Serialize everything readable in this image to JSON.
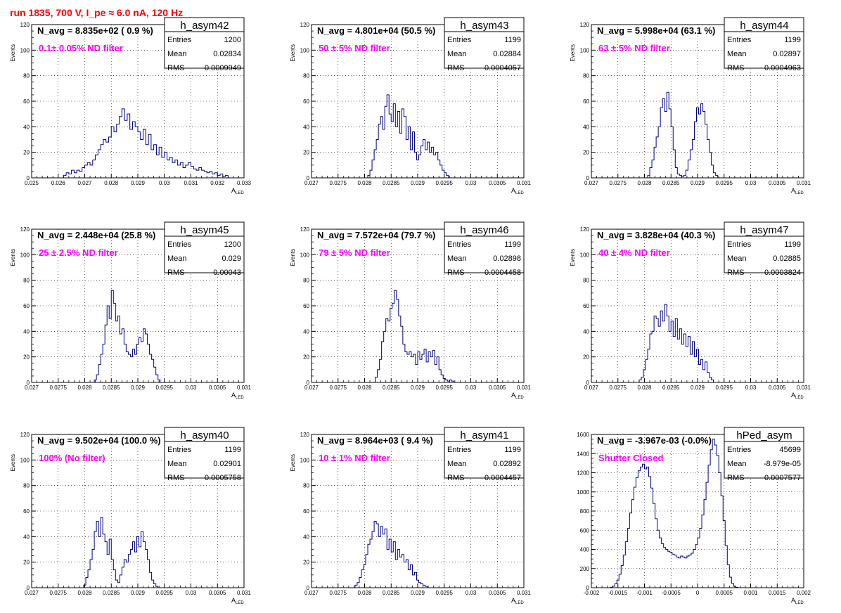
{
  "canvas_title": "run 1835,   700 V, I_pe ≈ 6.0 nA, 120 Hz",
  "colors": {
    "histogram": "#000080",
    "annotation": "#ff00ff",
    "title": "#ff0000",
    "grid": "#000000"
  },
  "chart_data": [
    {
      "type": "histogram",
      "name": "h_asym42",
      "navg_text": "N_avg = 8.835e+02 ( 0.9 %)",
      "filter_label": "0.1± 0.05% ND filter",
      "stats": {
        "entries_label": "Entries",
        "entries": "1200",
        "mean_label": "Mean",
        "mean": "0.02834",
        "rms_label": "RMS",
        "rms": "0.0009949"
      },
      "xlabel": "A",
      "xlabel_sub": "LED",
      "ylabel": "Events",
      "xlim": [
        0.025,
        0.033
      ],
      "ylim": [
        0,
        120
      ],
      "grid": true,
      "xticks": [
        0.025,
        0.026,
        0.027,
        0.028,
        0.029,
        0.03,
        0.031,
        0.032,
        0.033
      ],
      "xtick_labels": [
        "0.025",
        "0.026",
        "0.027",
        "0.028",
        "0.029",
        "0.03",
        "0.031",
        "0.032",
        "0.033"
      ],
      "yticks": [
        0,
        20,
        40,
        60,
        80,
        100,
        120
      ],
      "ytick_labels": [
        "0",
        "20",
        "40",
        "60",
        "80",
        "100",
        "120"
      ],
      "bin_start": 0.0262,
      "bin_width": 0.0001,
      "counts": [
        2,
        4,
        3,
        6,
        4,
        6,
        5,
        8,
        10,
        12,
        10,
        14,
        18,
        22,
        26,
        30,
        28,
        32,
        40,
        36,
        42,
        48,
        54,
        45,
        50,
        38,
        44,
        40,
        36,
        30,
        38,
        26,
        34,
        22,
        26,
        18,
        24,
        16,
        20,
        14,
        16,
        12,
        14,
        10,
        12,
        8,
        10,
        12,
        9,
        7,
        6,
        8,
        6,
        5,
        4,
        5,
        3,
        4,
        2,
        3,
        1,
        2
      ]
    },
    {
      "type": "histogram",
      "name": "h_asym43",
      "navg_text": "N_avg = 4.801e+04 (50.5 %)",
      "filter_label": "50 ± 5% ND filter",
      "stats": {
        "entries_label": "Entries",
        "entries": "1199",
        "mean_label": "Mean",
        "mean": "0.02884",
        "rms_label": "RMS",
        "rms": "0.0004057"
      },
      "xlabel": "A",
      "xlabel_sub": "LED",
      "ylabel": "Events",
      "xlim": [
        0.027,
        0.031
      ],
      "ylim": [
        0,
        120
      ],
      "grid": true,
      "xticks": [
        0.027,
        0.0275,
        0.028,
        0.0285,
        0.029,
        0.0295,
        0.03,
        0.0305,
        0.031
      ],
      "xtick_labels": [
        "0.027",
        "0.0275",
        "0.028",
        "0.0285",
        "0.029",
        "0.0295",
        "0.03",
        "0.0305",
        "0.031"
      ],
      "yticks": [
        0,
        20,
        40,
        60,
        80,
        100,
        120
      ],
      "ytick_labels": [
        "0",
        "20",
        "40",
        "60",
        "80",
        "100",
        "120"
      ],
      "bin_start": 0.02806,
      "bin_width": 4e-05,
      "counts": [
        2,
        6,
        14,
        22,
        30,
        42,
        48,
        38,
        56,
        65,
        50,
        44,
        58,
        40,
        52,
        35,
        54,
        48,
        30,
        40,
        22,
        36,
        20,
        14,
        18,
        25,
        30,
        22,
        28,
        20,
        24,
        18,
        20,
        14,
        10,
        6,
        4,
        2
      ]
    },
    {
      "type": "histogram",
      "name": "h_asym44",
      "navg_text": "N_avg = 5.998e+04 (63.1 %)",
      "filter_label": "63 ± 5% ND filter",
      "stats": {
        "entries_label": "Entries",
        "entries": "1199",
        "mean_label": "Mean",
        "mean": "0.02897",
        "rms_label": "RMS",
        "rms": "0.0004963"
      },
      "xlabel": "A",
      "xlabel_sub": "LED",
      "ylabel": "Events",
      "xlim": [
        0.027,
        0.031
      ],
      "ylim": [
        0,
        120
      ],
      "grid": true,
      "xticks": [
        0.027,
        0.0275,
        0.028,
        0.0285,
        0.029,
        0.0295,
        0.03,
        0.0305,
        0.031
      ],
      "xtick_labels": [
        "0.027",
        "0.0275",
        "0.028",
        "0.0285",
        "0.029",
        "0.0295",
        "0.03",
        "0.0305",
        "0.031"
      ],
      "yticks": [
        0,
        20,
        40,
        60,
        80,
        100,
        120
      ],
      "ytick_labels": [
        "0",
        "20",
        "40",
        "60",
        "80",
        "100",
        "120"
      ],
      "bin_start": 0.02806,
      "bin_width": 4e-05,
      "counts": [
        2,
        8,
        14,
        24,
        32,
        40,
        55,
        62,
        52,
        67,
        54,
        40,
        22,
        8,
        3,
        2,
        1,
        2,
        6,
        14,
        22,
        30,
        44,
        55,
        50,
        58,
        52,
        42,
        30,
        20,
        10,
        4,
        2
      ]
    },
    {
      "type": "histogram",
      "name": "h_asym45",
      "navg_text": "N_avg = 2.448e+04 (25.8 %)",
      "filter_label": "25 ± 2.5% ND filter",
      "stats": {
        "entries_label": "Entries",
        "entries": "1200",
        "mean_label": "Mean",
        "mean": "0.029",
        "rms_label": "RMS",
        "rms": "0.00043"
      },
      "xlabel": "A",
      "xlabel_sub": "LED",
      "ylabel": "Events",
      "xlim": [
        0.027,
        0.031
      ],
      "ylim": [
        0,
        120
      ],
      "grid": true,
      "xticks": [
        0.027,
        0.0275,
        0.028,
        0.0285,
        0.029,
        0.0295,
        0.03,
        0.0305,
        0.031
      ],
      "xtick_labels": [
        "0.027",
        "0.0275",
        "0.028",
        "0.0285",
        "0.029",
        "0.0295",
        "0.03",
        "0.0305",
        "0.031"
      ],
      "yticks": [
        0,
        20,
        40,
        60,
        80,
        100,
        120
      ],
      "ytick_labels": [
        "0",
        "20",
        "40",
        "60",
        "80",
        "100",
        "120"
      ],
      "bin_start": 0.02818,
      "bin_width": 4e-05,
      "counts": [
        2,
        6,
        14,
        22,
        30,
        45,
        60,
        50,
        72,
        62,
        48,
        52,
        38,
        42,
        30,
        24,
        22,
        20,
        26,
        22,
        30,
        35,
        32,
        42,
        38,
        30,
        22,
        18,
        12,
        6,
        2
      ]
    },
    {
      "type": "histogram",
      "name": "h_asym46",
      "navg_text": "N_avg = 7.572e+04 (79.7 %)",
      "filter_label": "79 ± 5% ND filter",
      "stats": {
        "entries_label": "Entries",
        "entries": "1199",
        "mean_label": "Mean",
        "mean": "0.02898",
        "rms_label": "RMS",
        "rms": "0.0004458"
      },
      "xlabel": "A",
      "xlabel_sub": "LED",
      "ylabel": "Events",
      "xlim": [
        0.027,
        0.031
      ],
      "ylim": [
        0,
        120
      ],
      "grid": true,
      "xticks": [
        0.027,
        0.0275,
        0.028,
        0.0285,
        0.029,
        0.0295,
        0.03,
        0.0305,
        0.031
      ],
      "xtick_labels": [
        "0.027",
        "0.0275",
        "0.028",
        "0.0285",
        "0.029",
        "0.0295",
        "0.03",
        "0.0305",
        "0.031"
      ],
      "yticks": [
        0,
        20,
        40,
        60,
        80,
        100,
        120
      ],
      "ytick_labels": [
        "0",
        "20",
        "40",
        "60",
        "80",
        "100",
        "120"
      ],
      "bin_start": 0.0282,
      "bin_width": 4e-05,
      "counts": [
        4,
        10,
        18,
        32,
        40,
        50,
        48,
        58,
        62,
        72,
        65,
        52,
        44,
        30,
        24,
        22,
        24,
        20,
        22,
        14,
        24,
        18,
        22,
        26,
        16,
        24,
        20,
        25,
        14,
        20,
        10,
        6,
        3,
        2,
        1,
        2,
        1
      ]
    },
    {
      "type": "histogram",
      "name": "h_asym47",
      "navg_text": "N_avg = 3.828e+04 (40.3 %)",
      "filter_label": "40 ± 4% ND filter",
      "stats": {
        "entries_label": "Entries",
        "entries": "1199",
        "mean_label": "Mean",
        "mean": "0.02885",
        "rms_label": "RMS",
        "rms": "0.0003824"
      },
      "xlabel": "A",
      "xlabel_sub": "LED",
      "ylabel": "Events",
      "xlim": [
        0.027,
        0.031
      ],
      "ylim": [
        0,
        120
      ],
      "grid": true,
      "xticks": [
        0.027,
        0.0275,
        0.028,
        0.0285,
        0.029,
        0.0295,
        0.03,
        0.0305,
        0.031
      ],
      "xtick_labels": [
        "0.027",
        "0.0275",
        "0.028",
        "0.0285",
        "0.029",
        "0.0295",
        "0.03",
        "0.0305",
        "0.031"
      ],
      "yticks": [
        0,
        20,
        40,
        60,
        80,
        100,
        120
      ],
      "ytick_labels": [
        "0",
        "20",
        "40",
        "60",
        "80",
        "100",
        "120"
      ],
      "bin_start": 0.0279,
      "bin_width": 4e-05,
      "counts": [
        2,
        4,
        10,
        18,
        26,
        38,
        40,
        52,
        50,
        44,
        56,
        48,
        61,
        52,
        40,
        48,
        36,
        50,
        34,
        42,
        30,
        38,
        28,
        36,
        22,
        32,
        20,
        26,
        14,
        18,
        10,
        16,
        8,
        4,
        2
      ]
    },
    {
      "type": "histogram",
      "name": "h_asym40",
      "navg_text": "N_avg = 9.502e+04 (100.0 %)",
      "filter_label": "100% (No filter)",
      "stats": {
        "entries_label": "Entries",
        "entries": "1199",
        "mean_label": "Mean",
        "mean": "0.02901",
        "rms_label": "RMS",
        "rms": "0.0005758"
      },
      "xlabel": "A",
      "xlabel_sub": "LED",
      "ylabel": "Events",
      "xlim": [
        0.027,
        0.031
      ],
      "ylim": [
        0,
        120
      ],
      "grid": true,
      "xticks": [
        0.027,
        0.0275,
        0.028,
        0.0285,
        0.029,
        0.0295,
        0.03,
        0.0305,
        0.031
      ],
      "xtick_labels": [
        "0.027",
        "0.0275",
        "0.028",
        "0.0285",
        "0.029",
        "0.0295",
        "0.03",
        "0.0305",
        "0.031"
      ],
      "yticks": [
        0,
        20,
        40,
        60,
        80,
        100,
        120
      ],
      "ytick_labels": [
        "0",
        "20",
        "40",
        "60",
        "80",
        "100",
        "120"
      ],
      "bin_start": 0.02798,
      "bin_width": 4e-05,
      "counts": [
        2,
        8,
        14,
        22,
        30,
        44,
        52,
        40,
        55,
        42,
        36,
        26,
        38,
        22,
        14,
        6,
        4,
        10,
        16,
        22,
        20,
        26,
        30,
        36,
        28,
        40,
        32,
        44,
        36,
        30,
        22,
        12,
        6,
        3,
        1
      ]
    },
    {
      "type": "histogram",
      "name": "h_asym41",
      "navg_text": "N_avg = 8.964e+03 ( 9.4 %)",
      "filter_label": "10 ± 1% ND filter",
      "stats": {
        "entries_label": "Entries",
        "entries": "1199",
        "mean_label": "Mean",
        "mean": "0.02892",
        "rms_label": "RMS",
        "rms": "0.0004457"
      },
      "xlabel": "A",
      "xlabel_sub": "LED",
      "ylabel": "Events",
      "xlim": [
        0.027,
        0.031
      ],
      "ylim": [
        0,
        120
      ],
      "grid": true,
      "xticks": [
        0.027,
        0.0275,
        0.028,
        0.0285,
        0.029,
        0.0295,
        0.03,
        0.0305,
        0.031
      ],
      "xtick_labels": [
        "0.027",
        "0.0275",
        "0.028",
        "0.0285",
        "0.029",
        "0.0295",
        "0.03",
        "0.0305",
        "0.031"
      ],
      "yticks": [
        0,
        20,
        40,
        60,
        80,
        100,
        120
      ],
      "ytick_labels": [
        "0",
        "20",
        "40",
        "60",
        "80",
        "100",
        "120"
      ],
      "bin_start": 0.02782,
      "bin_width": 4e-05,
      "counts": [
        2,
        4,
        8,
        14,
        18,
        26,
        34,
        38,
        44,
        52,
        50,
        40,
        48,
        42,
        46,
        30,
        38,
        28,
        36,
        22,
        30,
        24,
        26,
        20,
        22,
        14,
        18,
        10,
        12,
        6,
        4,
        3,
        2,
        1
      ]
    },
    {
      "type": "histogram",
      "name": "hPed_asym",
      "navg_text": "N_avg = -3.967e-03 (-0.0%)",
      "filter_label": "Shutter Closed",
      "stats": {
        "entries_label": "Entries",
        "entries": "45699",
        "mean_label": "Mean",
        "mean": "-8.979e-05",
        "rms_label": "RMS",
        "rms": "0.0007577"
      },
      "xlabel": "A",
      "xlabel_sub": "LED",
      "ylabel": "",
      "xlim": [
        -0.002,
        0.002
      ],
      "ylim": [
        0,
        1600
      ],
      "grid": true,
      "xticks": [
        -0.002,
        -0.0015,
        -0.001,
        -0.0005,
        0,
        0.0005,
        0.001,
        0.0015,
        0.002
      ],
      "xtick_labels": [
        "-0.002",
        "-0.0015",
        "-0.001",
        "-0.0005",
        "0",
        "0.0005",
        "0.001",
        "0.0015",
        "0.002"
      ],
      "yticks": [
        0,
        200,
        400,
        600,
        800,
        1000,
        1200,
        1400,
        1600
      ],
      "ytick_labels": [
        "0",
        "200",
        "400",
        "600",
        "800",
        "1000",
        "1200",
        "1400",
        "1600"
      ],
      "bin_start": -0.00164,
      "bin_width": 4e-05,
      "counts": [
        5,
        15,
        40,
        80,
        140,
        230,
        340,
        480,
        620,
        780,
        920,
        1050,
        1150,
        1220,
        1260,
        1290,
        1240,
        1260,
        1160,
        1040,
        880,
        720,
        600,
        520,
        460,
        420,
        400,
        380,
        370,
        350,
        340,
        320,
        310,
        330,
        320,
        310,
        330,
        340,
        360,
        400,
        450,
        520,
        620,
        760,
        920,
        1100,
        1280,
        1440,
        1550,
        1490,
        1380,
        1200,
        960,
        700,
        440,
        240,
        110,
        45,
        15,
        5
      ]
    }
  ]
}
